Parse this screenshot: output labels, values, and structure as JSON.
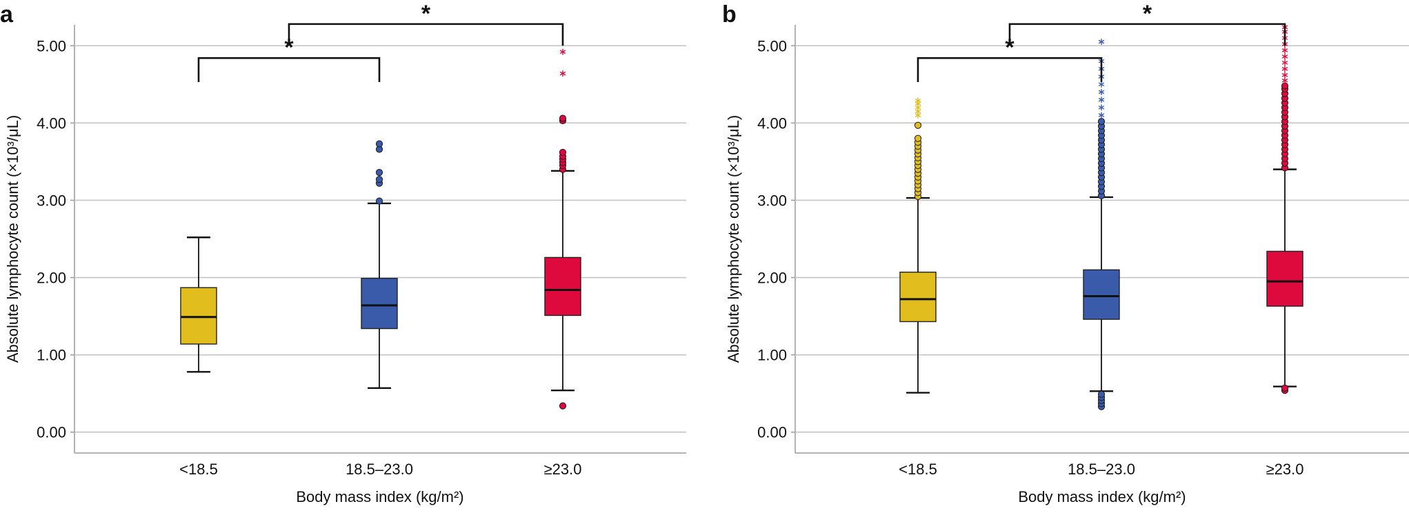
{
  "chart_data": [
    {
      "panel": "a",
      "type": "box",
      "xlabel": "Body mass index (kg/m²)",
      "ylabel": "Absolute lymphocyte count (×10³/μL)",
      "ylim": [
        -0.27,
        5.27
      ],
      "yticks": [
        "0.00",
        "1.00",
        "2.00",
        "3.00",
        "4.00",
        "5.00"
      ],
      "grid": true,
      "categories": [
        "<18.5",
        "18.5–23.0",
        "≥23.0"
      ],
      "boxes": [
        {
          "name": "<18.5",
          "color": "#E2BD1E",
          "whisker_low": 0.78,
          "q1": 1.14,
          "median": 1.49,
          "q3": 1.87,
          "whisker_high": 2.52,
          "outliers": [],
          "extremes": []
        },
        {
          "name": "18.5–23.0",
          "color": "#3A5AAA",
          "whisker_low": 0.57,
          "q1": 1.34,
          "median": 1.64,
          "q3": 1.99,
          "whisker_high": 2.96,
          "outliers": [
            2.99,
            3.22,
            3.27,
            3.36,
            3.66,
            3.73
          ],
          "extremes": []
        },
        {
          "name": "≥23.0",
          "color": "#DE0A3E",
          "whisker_low": 0.54,
          "q1": 1.51,
          "median": 1.84,
          "q3": 2.26,
          "whisker_high": 3.38,
          "outliers": [
            0.34,
            3.4,
            3.45,
            3.49,
            3.53,
            3.57,
            3.62,
            4.03,
            4.06
          ],
          "extremes": [
            4.64,
            4.92
          ]
        }
      ],
      "significance": [
        {
          "from": 0,
          "to": 1,
          "y": 4.84,
          "drop_y": 4.53,
          "label": "*"
        },
        {
          "from": 0.5,
          "to": 2,
          "y": 5.28,
          "drop_y": 5.0,
          "label": "*"
        }
      ]
    },
    {
      "panel": "b",
      "type": "box",
      "xlabel": "Body mass index (kg/m²)",
      "ylabel": "Absolute lymphocyte count (×10³/μL)",
      "ylim": [
        -0.27,
        5.27
      ],
      "yticks": [
        "0.00",
        "1.00",
        "2.00",
        "3.00",
        "4.00",
        "5.00"
      ],
      "grid": true,
      "categories": [
        "<18.5",
        "18.5–23.0",
        "≥23.0"
      ],
      "boxes": [
        {
          "name": "<18.5",
          "color": "#E2BD1E",
          "whisker_low": 0.51,
          "q1": 1.43,
          "median": 1.72,
          "q3": 2.07,
          "whisker_high": 3.03,
          "outliers": [
            3.05,
            3.1,
            3.15,
            3.2,
            3.25,
            3.3,
            3.35,
            3.4,
            3.45,
            3.5,
            3.55,
            3.6,
            3.65,
            3.7,
            3.75,
            3.8,
            3.97
          ],
          "extremes": [
            4.1,
            4.15,
            4.2,
            4.25,
            4.29
          ]
        },
        {
          "name": "18.5–23.0",
          "color": "#3A5AAA",
          "whisker_low": 0.53,
          "q1": 1.46,
          "median": 1.76,
          "q3": 2.1,
          "whisker_high": 3.04,
          "outliers": [
            0.33,
            0.37,
            0.41,
            0.45,
            0.49,
            3.06,
            3.12,
            3.18,
            3.24,
            3.3,
            3.36,
            3.42,
            3.48,
            3.54,
            3.6,
            3.66,
            3.72,
            3.78,
            3.84,
            3.9,
            3.96,
            4.02
          ],
          "extremes": [
            4.1,
            4.2,
            4.3,
            4.4,
            4.5,
            4.6,
            4.7,
            4.8,
            5.05
          ]
        },
        {
          "name": "≥23.0",
          "color": "#DE0A3E",
          "whisker_low": 0.59,
          "q1": 1.63,
          "median": 1.95,
          "q3": 2.34,
          "whisker_high": 3.4,
          "outliers": [
            0.54,
            0.57,
            3.42,
            3.48,
            3.54,
            3.6,
            3.66,
            3.72,
            3.78,
            3.84,
            3.9,
            3.96,
            4.02,
            4.08,
            4.14,
            4.2,
            4.26,
            4.32,
            4.38,
            4.44,
            4.48
          ],
          "extremes": [
            4.55,
            4.62,
            4.7,
            4.78,
            4.86,
            4.94,
            5.02,
            5.1,
            5.18,
            5.24
          ]
        }
      ],
      "significance": [
        {
          "from": 0,
          "to": 1,
          "y": 4.84,
          "drop_y": 4.53,
          "label": "*"
        },
        {
          "from": 0.5,
          "to": 2,
          "y": 5.28,
          "drop_y": 5.0,
          "label": "*"
        }
      ]
    }
  ]
}
